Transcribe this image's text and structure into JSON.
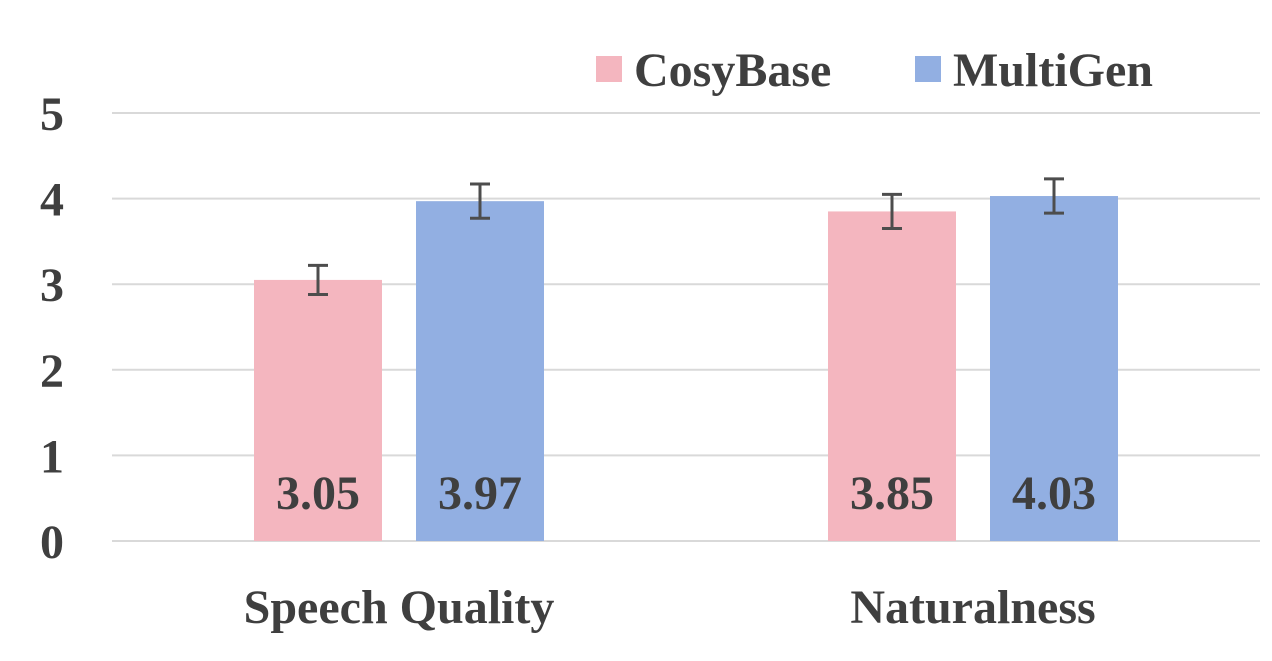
{
  "chart_data": {
    "type": "bar",
    "categories": [
      "Speech Quality",
      "Naturalness"
    ],
    "series": [
      {
        "name": "CosyBase",
        "values": [
          3.05,
          3.85
        ],
        "errors": [
          0.17,
          0.2
        ],
        "labels": [
          "3.05",
          "3.85"
        ],
        "color": "#f4b6bf"
      },
      {
        "name": "MultiGen",
        "values": [
          3.97,
          4.03
        ],
        "errors": [
          0.2,
          0.2
        ],
        "labels": [
          "3.97",
          "4.03"
        ],
        "color": "#92afe2"
      }
    ],
    "ylim": [
      0,
      5
    ],
    "yticks": [
      "0",
      "1",
      "2",
      "3",
      "4",
      "5"
    ],
    "grid": true,
    "legend_position": "top-right",
    "title": "",
    "xlabel": "",
    "ylabel": ""
  }
}
